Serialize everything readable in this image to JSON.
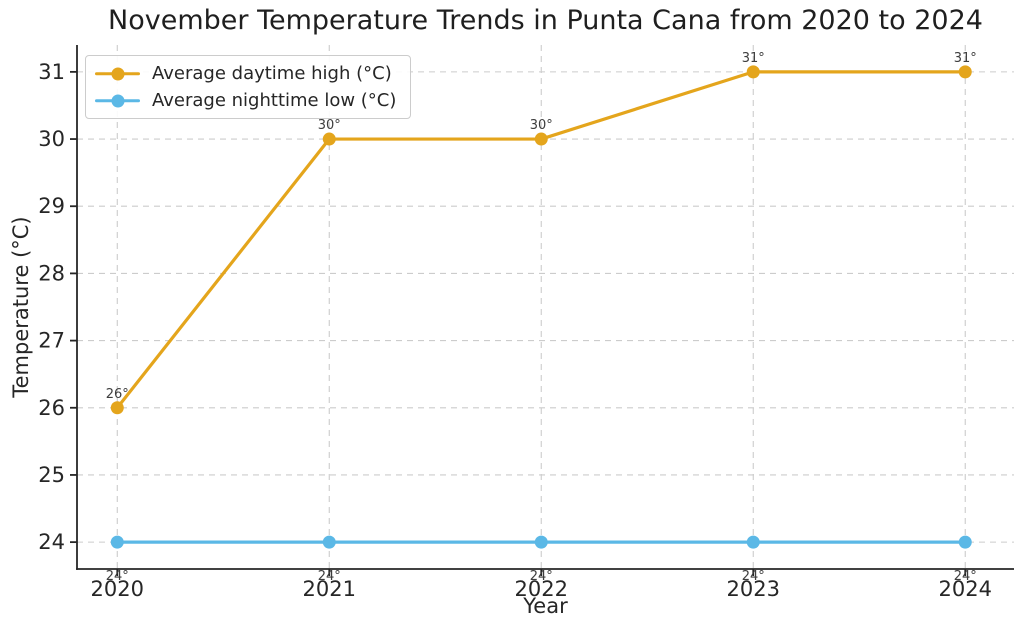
{
  "chart_data": {
    "type": "line",
    "title": "November Temperature Trends in Punta Cana from 2020 to 2024",
    "xlabel": "Year",
    "ylabel": "Temperature (°C)",
    "x": [
      2020,
      2021,
      2022,
      2023,
      2024
    ],
    "categories": [
      "2020",
      "2021",
      "2022",
      "2023",
      "2024"
    ],
    "series": [
      {
        "name": "Average daytime high (°C)",
        "values": [
          26,
          30,
          30,
          31,
          31
        ],
        "point_labels": [
          "26°",
          "30°",
          "30°",
          "31°",
          "31°"
        ],
        "label_position": "above",
        "color": "#E4A51C",
        "marker": "circle"
      },
      {
        "name": "Average nighttime low (°C)",
        "values": [
          24,
          24,
          24,
          24,
          24
        ],
        "point_labels": [
          "24°",
          "24°",
          "24°",
          "24°",
          "24°"
        ],
        "label_position": "below",
        "color": "#5BB8E6",
        "marker": "circle"
      }
    ],
    "yticks": [
      24,
      25,
      26,
      27,
      28,
      29,
      30,
      31
    ],
    "ylim": [
      23.6,
      31.4
    ],
    "xlim": [
      2019.81,
      2024.23
    ],
    "grid": "dashed",
    "legend_position": "upper-left",
    "colors": {
      "grid": "#cccccc",
      "spine": "#262626",
      "tick_label": "#262626",
      "annotation": "#3d3d3d",
      "title": "#1f1f1f"
    }
  }
}
